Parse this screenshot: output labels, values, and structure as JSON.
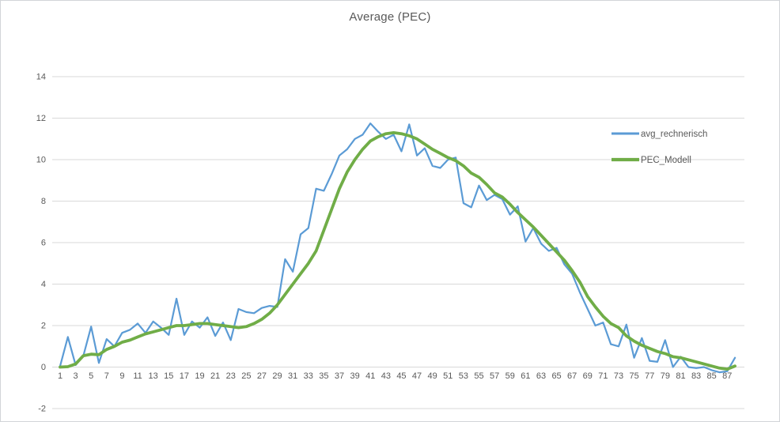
{
  "chart_data": {
    "type": "line",
    "title": "Average (PEC)",
    "n_points": 88,
    "x_tick_labels": [
      "1",
      "3",
      "5",
      "7",
      "9",
      "11",
      "13",
      "15",
      "17",
      "19",
      "21",
      "23",
      "25",
      "27",
      "29",
      "31",
      "33",
      "35",
      "37",
      "39",
      "41",
      "43",
      "45",
      "47",
      "49",
      "51",
      "53",
      "55",
      "57",
      "59",
      "61",
      "63",
      "65",
      "67",
      "69",
      "71",
      "73",
      "75",
      "77",
      "79",
      "81",
      "83",
      "85",
      "87"
    ],
    "y_ticks": [
      14,
      12,
      10,
      8,
      6,
      4,
      2,
      0,
      -2
    ],
    "ylim": [
      -2,
      14
    ],
    "grid": "horizontal-only",
    "grid_color": "#d9d9d9",
    "text_color": "#595959",
    "background": "#ffffff",
    "legend_position": "right-inside",
    "series": [
      {
        "name": "avg_rechnerisch",
        "color": "#5b9bd5",
        "stroke_width": 2.2,
        "values": [
          0.05,
          1.45,
          0.1,
          0.55,
          1.95,
          0.2,
          1.35,
          1.0,
          1.65,
          1.8,
          2.1,
          1.65,
          2.2,
          1.9,
          1.55,
          3.3,
          1.55,
          2.2,
          1.9,
          2.4,
          1.5,
          2.15,
          1.3,
          2.8,
          2.65,
          2.6,
          2.85,
          2.95,
          2.9,
          5.2,
          4.6,
          6.4,
          6.7,
          8.6,
          8.5,
          9.3,
          10.2,
          10.5,
          11.0,
          11.2,
          11.75,
          11.35,
          11.0,
          11.2,
          10.4,
          11.7,
          10.2,
          10.55,
          9.7,
          9.6,
          10.0,
          10.1,
          7.9,
          7.7,
          8.75,
          8.05,
          8.3,
          8.1,
          7.35,
          7.75,
          6.05,
          6.7,
          5.95,
          5.6,
          5.75,
          4.95,
          4.5,
          3.6,
          2.8,
          2.0,
          2.15,
          1.1,
          1.0,
          2.05,
          0.45,
          1.4,
          0.3,
          0.25,
          1.3,
          0.0,
          0.5,
          0.0,
          -0.05,
          0.0,
          -0.15,
          -0.25,
          -0.2,
          0.45
        ]
      },
      {
        "name": "PEC_Modell",
        "color": "#70ad47",
        "stroke_width": 3.8,
        "values": [
          0.0,
          0.02,
          0.15,
          0.55,
          0.62,
          0.6,
          0.85,
          1.0,
          1.2,
          1.3,
          1.45,
          1.6,
          1.7,
          1.8,
          1.9,
          2.0,
          2.0,
          2.05,
          2.1,
          2.1,
          2.05,
          2.0,
          1.95,
          1.9,
          1.95,
          2.1,
          2.3,
          2.6,
          3.0,
          3.5,
          4.0,
          4.5,
          5.0,
          5.6,
          6.6,
          7.6,
          8.6,
          9.4,
          10.0,
          10.5,
          10.9,
          11.1,
          11.25,
          11.3,
          11.25,
          11.15,
          11.0,
          10.75,
          10.5,
          10.3,
          10.1,
          9.95,
          9.7,
          9.35,
          9.15,
          8.8,
          8.4,
          8.2,
          7.85,
          7.45,
          7.1,
          6.75,
          6.35,
          5.95,
          5.55,
          5.15,
          4.65,
          4.1,
          3.4,
          2.9,
          2.45,
          2.1,
          1.9,
          1.5,
          1.25,
          1.05,
          0.9,
          0.75,
          0.65,
          0.5,
          0.45,
          0.35,
          0.25,
          0.15,
          0.05,
          -0.05,
          -0.1,
          0.05
        ]
      }
    ]
  }
}
